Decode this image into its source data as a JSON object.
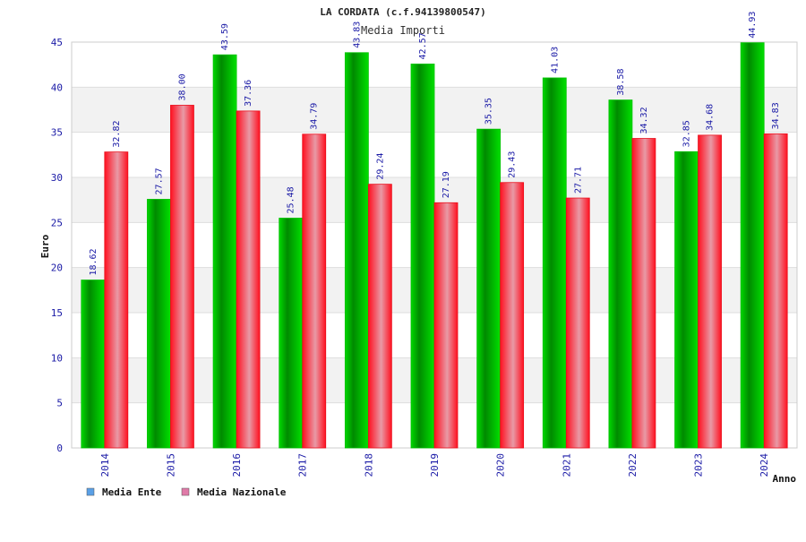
{
  "chart_data": {
    "type": "bar",
    "title": "LA CORDATA (c.f.94139800547)",
    "subtitle": "Media Importi",
    "xlabel": "Anno",
    "ylabel": "Euro",
    "ylim": [
      0,
      45
    ],
    "yticks": [
      "0",
      "5",
      "10",
      "15",
      "20",
      "25",
      "30",
      "35",
      "40",
      "45"
    ],
    "grid": true,
    "legend_position": "bottom-left",
    "categories": [
      "2014",
      "2015",
      "2016",
      "2017",
      "2018",
      "2019",
      "2020",
      "2021",
      "2022",
      "2023",
      "2024"
    ],
    "series": [
      {
        "name": "Media Ente",
        "color": "#00c000",
        "legend_color": "#5aa0e6",
        "values": [
          18.62,
          27.57,
          43.59,
          25.48,
          43.83,
          42.57,
          35.35,
          41.03,
          38.58,
          32.85,
          44.93
        ],
        "labels": [
          "18.62",
          "27.57",
          "43.59",
          "25.48",
          "43.83",
          "42.57",
          "35.35",
          "41.03",
          "38.58",
          "32.85",
          "44.93"
        ]
      },
      {
        "name": "Media Nazionale",
        "color": "#e8101c",
        "legend_color": "#e07aa8",
        "values": [
          32.82,
          38.0,
          37.36,
          34.79,
          29.24,
          27.19,
          29.43,
          27.71,
          34.32,
          34.68,
          34.83
        ],
        "labels": [
          "32.82",
          "38.00",
          "37.36",
          "34.79",
          "29.24",
          "27.19",
          "29.43",
          "27.71",
          "34.32",
          "34.68",
          "34.83"
        ]
      }
    ]
  }
}
